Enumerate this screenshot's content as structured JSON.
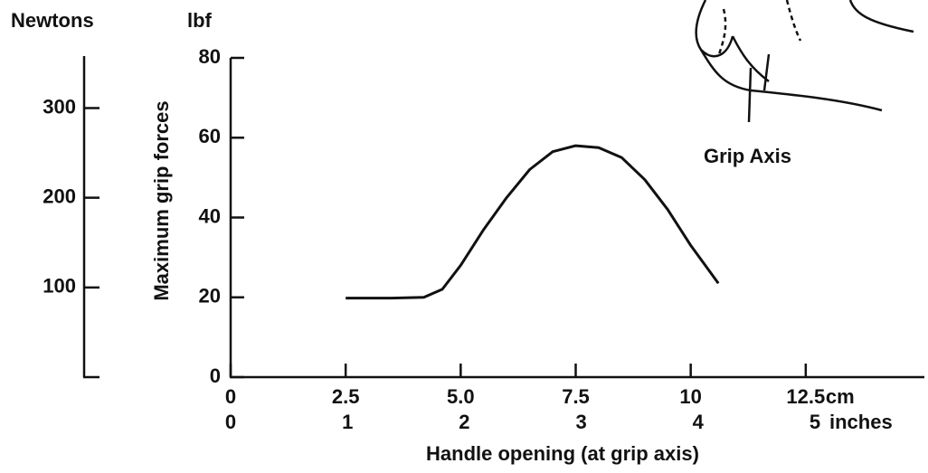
{
  "chart_data": {
    "type": "line",
    "y_title": "Maximum grip forces",
    "y_unit": "lbf",
    "y2_unit": "Newtons",
    "x_title": "Handle opening (at grip axis)",
    "x_unit": "cm",
    "x2_unit": "inches",
    "annotation": "Grip Axis",
    "color": "#111111",
    "x": [
      2.5,
      3.5,
      4.2,
      4.6,
      5.0,
      5.5,
      6.0,
      6.5,
      7.0,
      7.5,
      8.0,
      8.5,
      9.0,
      9.5,
      10.0,
      10.6
    ],
    "values": [
      19.8,
      19.8,
      20,
      22,
      28,
      37,
      45,
      52,
      56.5,
      58,
      57.5,
      55,
      49.5,
      42,
      33,
      23.5
    ],
    "xlim": [
      0,
      15
    ],
    "xticks": [
      0,
      2.5,
      {
        "value": 5,
        "label": "5.0"
      },
      7.5,
      10,
      12.5
    ],
    "x2ticks": [
      0,
      1,
      2,
      3,
      4,
      5
    ],
    "ylim": [
      0,
      80
    ],
    "yticks": [
      0,
      20,
      40,
      60,
      80
    ],
    "y2lim": [
      0,
      356
    ],
    "y2ticks": [
      100,
      200,
      300
    ]
  }
}
